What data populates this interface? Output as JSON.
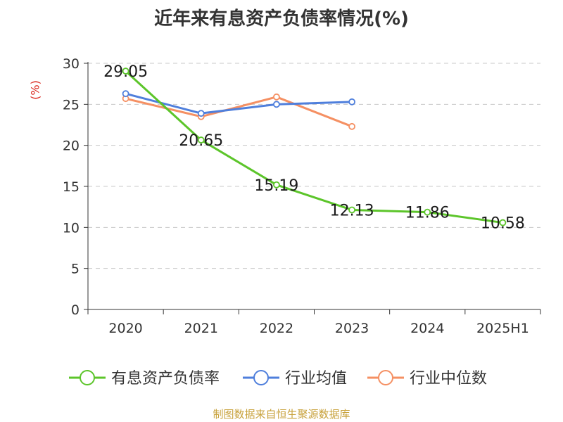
{
  "chart_data": {
    "type": "line",
    "title": "近年来有息资产负债率情况(%)",
    "ylabel": "(%)",
    "categories": [
      "2020",
      "2021",
      "2022",
      "2023",
      "2024",
      "2025H1"
    ],
    "ylim": [
      0,
      30
    ],
    "yticks": [
      "0",
      "5",
      "10",
      "15",
      "20",
      "25",
      "30"
    ],
    "grid": true,
    "legend_position": "bottom",
    "series": [
      {
        "name": "有息资产负债率",
        "color": "#5cc52a",
        "values": [
          29.05,
          20.65,
          15.19,
          12.13,
          11.86,
          10.58
        ],
        "labels": [
          "29.05",
          "20.65",
          "15.19",
          "12.13",
          "11.86",
          "10.58"
        ]
      },
      {
        "name": "行业均值",
        "color": "#4f7fdc",
        "values": [
          26.3,
          23.9,
          25.0,
          25.3,
          null,
          null
        ]
      },
      {
        "name": "行业中位数",
        "color": "#f59063",
        "values": [
          25.7,
          23.5,
          25.9,
          22.3,
          null,
          null
        ]
      }
    ]
  },
  "source": "制图数据来自恒生聚源数据库"
}
